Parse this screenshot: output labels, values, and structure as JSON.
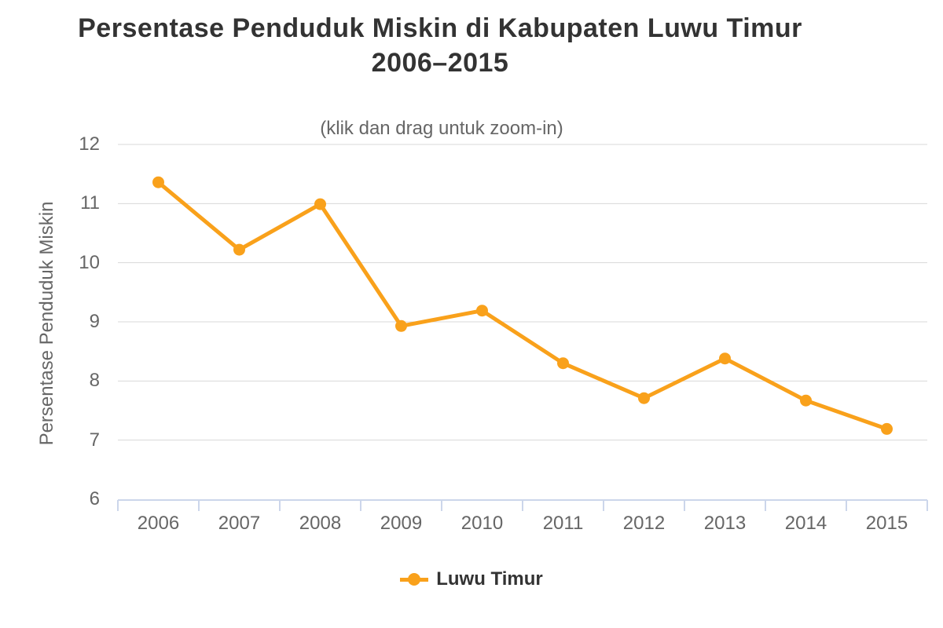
{
  "title": {
    "line1": "Persentase Penduduk Miskin di Kabupaten Luwu Timur",
    "line2": "2006–2015"
  },
  "subtitle": "(klik dan drag untuk zoom-in)",
  "colors": {
    "series": "#f9a11b",
    "gridline": "#d8d8d8",
    "axis_line": "#ccd6eb",
    "title_text": "#333333",
    "muted_text": "#666666",
    "background": "#ffffff"
  },
  "chart_data": {
    "type": "line",
    "title": "Persentase Penduduk Miskin di Kabupaten Luwu Timur 2006–2015",
    "subtitle": "(klik dan drag untuk zoom-in)",
    "categories": [
      "2006",
      "2007",
      "2008",
      "2009",
      "2010",
      "2011",
      "2012",
      "2013",
      "2014",
      "2015"
    ],
    "series": [
      {
        "name": "Luwu Timur",
        "color": "#f9a11b",
        "values": [
          11.36,
          10.22,
          10.99,
          8.93,
          9.19,
          8.3,
          7.71,
          8.38,
          7.67,
          7.19
        ]
      }
    ],
    "xlabel": "",
    "ylabel": "Persentase Penduduk Miskin",
    "ylim": [
      6,
      12
    ],
    "yticks": [
      6,
      7,
      8,
      9,
      10,
      11,
      12
    ],
    "grid": true,
    "legend_position": "bottom",
    "marker": "circle"
  }
}
